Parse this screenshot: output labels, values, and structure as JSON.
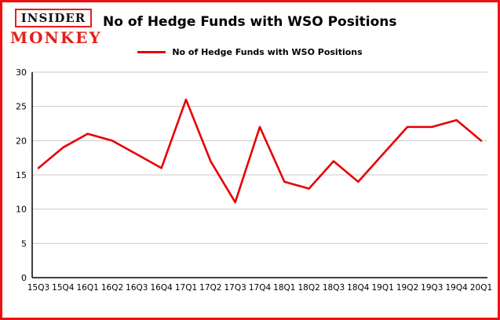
{
  "logo": {
    "top": "INSIDER",
    "bottom": "MONKEY"
  },
  "header": {
    "title": "No of Hedge Funds with WSO Positions"
  },
  "legend": {
    "label": "No of Hedge Funds with WSO Positions"
  },
  "colors": {
    "line": "#e60000",
    "frame": "#ee1111",
    "logo_red": "#e3201b",
    "grid": "#c9c9c9",
    "axis": "#000000"
  },
  "chart_data": {
    "type": "line",
    "title": "No of Hedge Funds with WSO Positions",
    "categories": [
      "15Q3",
      "15Q4",
      "16Q1",
      "16Q2",
      "16Q3",
      "16Q4",
      "17Q1",
      "17Q2",
      "17Q3",
      "17Q4",
      "18Q1",
      "18Q2",
      "18Q3",
      "18Q4",
      "19Q1",
      "19Q2",
      "19Q3",
      "19Q4",
      "20Q1"
    ],
    "values": [
      16,
      19,
      21,
      20,
      18,
      16,
      26,
      17,
      11,
      22,
      14,
      13,
      17,
      14,
      18,
      22,
      22,
      23,
      20
    ],
    "xlabel": "",
    "ylabel": "",
    "ylim": [
      0,
      30
    ],
    "yticks": [
      0,
      5,
      10,
      15,
      20,
      25,
      30
    ],
    "grid": true,
    "legend_entries": [
      "No of Hedge Funds with WSO Positions"
    ],
    "legend_position": "top",
    "line_color": "#e60000"
  }
}
